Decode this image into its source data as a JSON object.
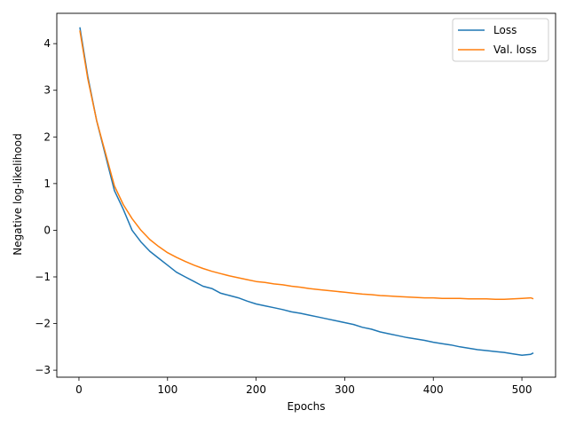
{
  "chart_data": {
    "type": "line",
    "title": "",
    "xlabel": "Epochs",
    "ylabel": "Negative log-likelihood",
    "xlim": [
      -25,
      538
    ],
    "ylim": [
      -3.15,
      4.65
    ],
    "xticks": [
      0,
      100,
      200,
      300,
      400,
      500
    ],
    "yticks": [
      -3,
      -2,
      -1,
      0,
      1,
      2,
      3,
      4
    ],
    "grid": false,
    "legend": "top-right",
    "series": [
      {
        "name": "Loss",
        "color": "#1f77b4",
        "x": [
          1,
          10,
          20,
          30,
          40,
          50,
          60,
          70,
          80,
          90,
          100,
          110,
          120,
          130,
          140,
          150,
          160,
          170,
          180,
          190,
          200,
          210,
          220,
          230,
          240,
          250,
          260,
          270,
          280,
          290,
          300,
          310,
          320,
          330,
          340,
          350,
          360,
          370,
          380,
          390,
          400,
          410,
          420,
          430,
          440,
          450,
          460,
          470,
          480,
          490,
          500,
          510,
          513
        ],
        "y": [
          4.35,
          3.3,
          2.35,
          1.6,
          0.85,
          0.45,
          0.0,
          -0.25,
          -0.45,
          -0.6,
          -0.75,
          -0.9,
          -1.0,
          -1.1,
          -1.2,
          -1.25,
          -1.35,
          -1.4,
          -1.45,
          -1.52,
          -1.58,
          -1.62,
          -1.66,
          -1.7,
          -1.75,
          -1.78,
          -1.82,
          -1.86,
          -1.9,
          -1.94,
          -1.98,
          -2.02,
          -2.08,
          -2.12,
          -2.18,
          -2.22,
          -2.26,
          -2.3,
          -2.33,
          -2.36,
          -2.4,
          -2.43,
          -2.46,
          -2.5,
          -2.53,
          -2.56,
          -2.58,
          -2.6,
          -2.62,
          -2.65,
          -2.68,
          -2.66,
          -2.63
        ]
      },
      {
        "name": "Val. loss",
        "color": "#ff7f0e",
        "x": [
          1,
          10,
          20,
          30,
          40,
          50,
          60,
          70,
          80,
          90,
          100,
          110,
          120,
          130,
          140,
          150,
          160,
          170,
          180,
          190,
          200,
          210,
          220,
          230,
          240,
          250,
          260,
          270,
          280,
          290,
          300,
          310,
          320,
          330,
          340,
          350,
          360,
          370,
          380,
          390,
          400,
          410,
          420,
          430,
          440,
          450,
          460,
          470,
          480,
          490,
          500,
          510,
          513
        ],
        "y": [
          4.28,
          3.25,
          2.35,
          1.65,
          0.95,
          0.55,
          0.25,
          0.0,
          -0.2,
          -0.35,
          -0.48,
          -0.58,
          -0.67,
          -0.75,
          -0.82,
          -0.88,
          -0.93,
          -0.98,
          -1.02,
          -1.06,
          -1.1,
          -1.12,
          -1.15,
          -1.17,
          -1.2,
          -1.22,
          -1.25,
          -1.27,
          -1.29,
          -1.31,
          -1.33,
          -1.35,
          -1.37,
          -1.38,
          -1.4,
          -1.41,
          -1.42,
          -1.43,
          -1.44,
          -1.45,
          -1.45,
          -1.46,
          -1.46,
          -1.46,
          -1.47,
          -1.47,
          -1.47,
          -1.48,
          -1.48,
          -1.47,
          -1.46,
          -1.45,
          -1.47
        ]
      }
    ]
  }
}
